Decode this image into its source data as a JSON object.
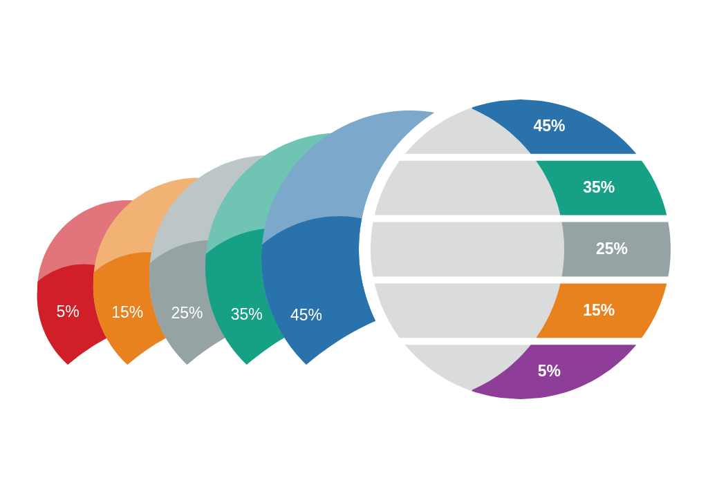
{
  "chart_data": [
    {
      "type": "other",
      "categories": [
        null,
        null,
        null,
        null,
        null
      ],
      "values": [
        5,
        15,
        25,
        35,
        45
      ],
      "value_labels": [
        "5%",
        "15%",
        "25%",
        "35%",
        "45%"
      ],
      "colors": [
        "#d11f2a",
        "#e8821f",
        "#95a3a4",
        "#16a085",
        "#2a72ab"
      ]
    },
    {
      "type": "other",
      "categories": [
        null,
        null,
        null,
        null,
        null
      ],
      "values": [
        45,
        35,
        25,
        15,
        5
      ],
      "value_labels": [
        "45%",
        "35%",
        "25%",
        "15%",
        "5%"
      ],
      "colors": [
        "#2a72ab",
        "#16a085",
        "#95a3a4",
        "#e8821f",
        "#8e3d98"
      ]
    }
  ]
}
